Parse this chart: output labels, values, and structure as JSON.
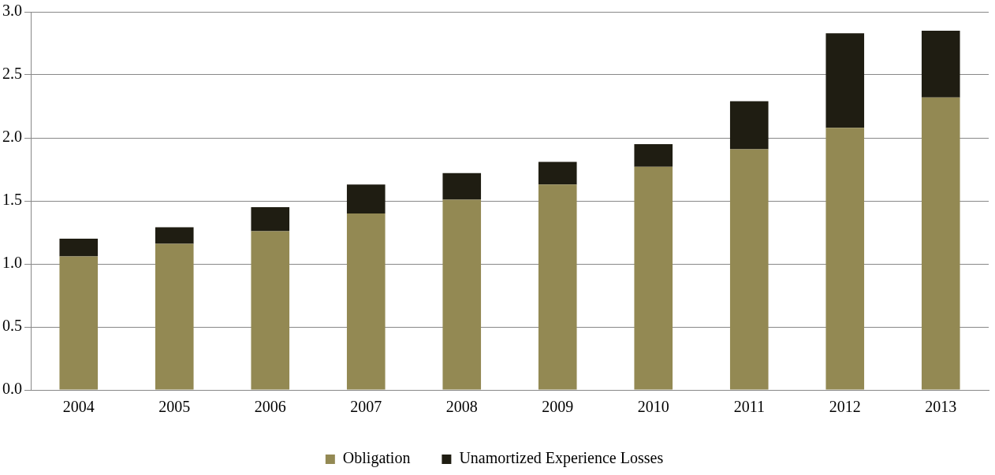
{
  "chart_data": {
    "type": "bar",
    "stacked": true,
    "categories": [
      "2004",
      "2005",
      "2006",
      "2007",
      "2008",
      "2009",
      "2010",
      "2011",
      "2012",
      "2013"
    ],
    "series": [
      {
        "name": "Obligation",
        "color": "#938953",
        "values": [
          1.06,
          1.16,
          1.26,
          1.4,
          1.51,
          1.63,
          1.77,
          1.91,
          2.08,
          2.32
        ]
      },
      {
        "name": "Unamortized Experience Losses",
        "color": "#1f1d12",
        "values": [
          0.14,
          0.13,
          0.19,
          0.23,
          0.21,
          0.18,
          0.18,
          0.38,
          0.75,
          0.53
        ]
      }
    ],
    "ylim": [
      0,
      3
    ],
    "yticks": [
      {
        "value": 0,
        "label": "0.0"
      },
      {
        "value": 0.5,
        "label": "0.5"
      },
      {
        "value": 1,
        "label": "1.0"
      },
      {
        "value": 1.5,
        "label": "1.5"
      },
      {
        "value": 2,
        "label": "2.0"
      },
      {
        "value": 2.5,
        "label": "2.5"
      },
      {
        "value": 3,
        "label": "3.0"
      }
    ],
    "grid": "y",
    "legend": "bottom"
  }
}
